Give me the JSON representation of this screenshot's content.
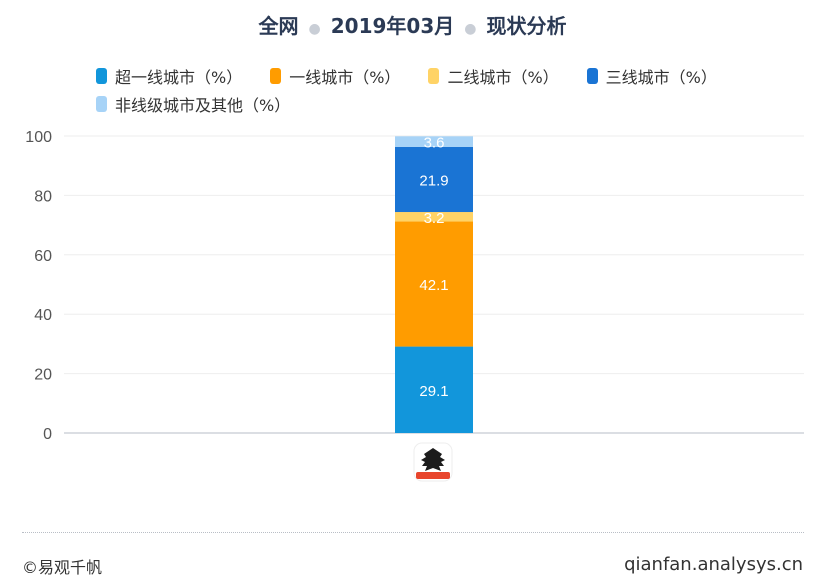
{
  "title": {
    "scope": "全网",
    "period": "2019年03月",
    "subject": "现状分析"
  },
  "chart_data": {
    "type": "bar",
    "stacked": true,
    "categories": [
      ""
    ],
    "category_icon": "lion-app-icon",
    "ylim": [
      0,
      100
    ],
    "yticks": [
      0,
      20,
      40,
      60,
      80,
      100
    ],
    "grid": true,
    "legend_position": "top",
    "series": [
      {
        "name": "超一线城市（%）",
        "values": [
          29.1
        ],
        "color": "#1296db"
      },
      {
        "name": "一线城市（%）",
        "values": [
          42.1
        ],
        "color": "#ff9c00"
      },
      {
        "name": "二线城市（%）",
        "values": [
          3.2
        ],
        "color": "#ffd366"
      },
      {
        "name": "三线城市（%）",
        "values": [
          21.9
        ],
        "color": "#1a74d4"
      },
      {
        "name": "非线级城市及其他（%）",
        "values": [
          3.6
        ],
        "color": "#a7d3f7"
      }
    ]
  },
  "footer": {
    "copyright": "©易观千帆",
    "website": "qianfan.analysys.cn"
  }
}
